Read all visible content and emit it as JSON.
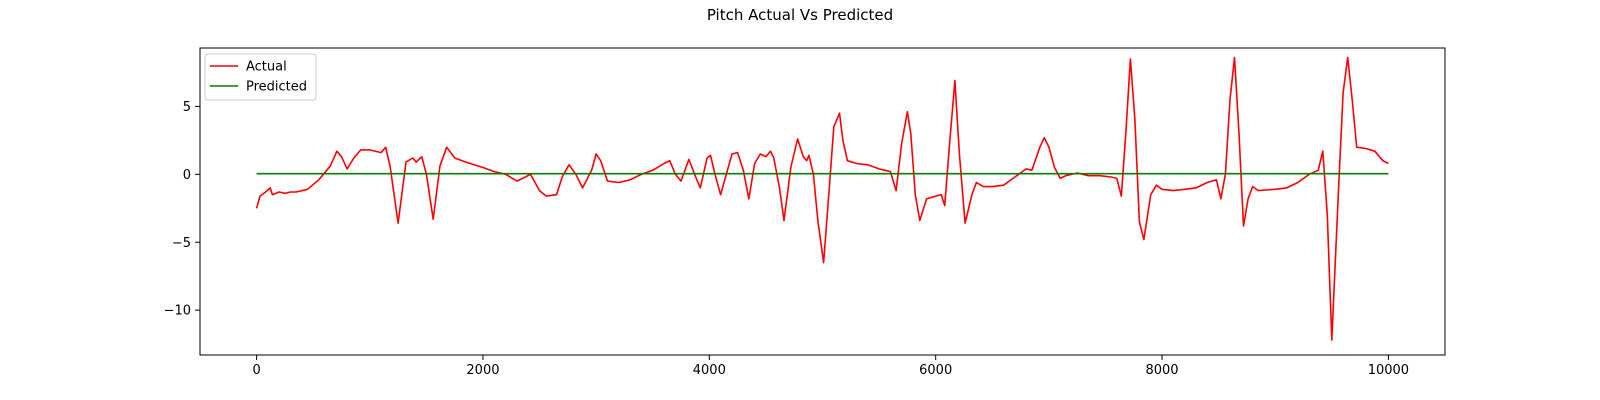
{
  "chart_data": {
    "type": "line",
    "title": "Pitch Actual Vs Predicted",
    "xlabel": "",
    "ylabel": "",
    "xlim": [
      -500,
      10500
    ],
    "ylim": [
      -13.3,
      9.3
    ],
    "xticks": [
      0,
      2000,
      4000,
      6000,
      8000,
      10000
    ],
    "yticks": [
      -10,
      -5,
      0,
      5
    ],
    "grid": false,
    "legend_position": "top-left",
    "series": [
      {
        "name": "Actual",
        "color": "#ff0000",
        "points": [
          [
            0,
            -2.5
          ],
          [
            30,
            -1.6
          ],
          [
            80,
            -1.3
          ],
          [
            120,
            -1.0
          ],
          [
            140,
            -1.5
          ],
          [
            200,
            -1.3
          ],
          [
            250,
            -1.4
          ],
          [
            300,
            -1.3
          ],
          [
            350,
            -1.3
          ],
          [
            450,
            -1.1
          ],
          [
            550,
            -0.4
          ],
          [
            650,
            0.6
          ],
          [
            710,
            1.7
          ],
          [
            750,
            1.3
          ],
          [
            800,
            0.4
          ],
          [
            860,
            1.2
          ],
          [
            920,
            1.8
          ],
          [
            1000,
            1.8
          ],
          [
            1100,
            1.6
          ],
          [
            1140,
            2.0
          ],
          [
            1180,
            0.6
          ],
          [
            1250,
            -3.6
          ],
          [
            1320,
            0.9
          ],
          [
            1380,
            1.2
          ],
          [
            1410,
            0.9
          ],
          [
            1460,
            1.3
          ],
          [
            1500,
            0.0
          ],
          [
            1560,
            -3.3
          ],
          [
            1620,
            0.6
          ],
          [
            1680,
            2.0
          ],
          [
            1750,
            1.2
          ],
          [
            1850,
            0.9
          ],
          [
            2000,
            0.5
          ],
          [
            2100,
            0.2
          ],
          [
            2200,
            0.0
          ],
          [
            2300,
            -0.5
          ],
          [
            2420,
            0.0
          ],
          [
            2500,
            -1.2
          ],
          [
            2560,
            -1.6
          ],
          [
            2650,
            -1.5
          ],
          [
            2700,
            -0.2
          ],
          [
            2760,
            0.7
          ],
          [
            2820,
            0.0
          ],
          [
            2880,
            -1.0
          ],
          [
            2960,
            0.3
          ],
          [
            3000,
            1.5
          ],
          [
            3040,
            1.0
          ],
          [
            3100,
            -0.5
          ],
          [
            3200,
            -0.6
          ],
          [
            3300,
            -0.4
          ],
          [
            3400,
            0.0
          ],
          [
            3500,
            0.3
          ],
          [
            3600,
            0.8
          ],
          [
            3650,
            1.0
          ],
          [
            3700,
            0.0
          ],
          [
            3750,
            -0.5
          ],
          [
            3820,
            1.1
          ],
          [
            3870,
            0.0
          ],
          [
            3920,
            -1.0
          ],
          [
            3980,
            1.2
          ],
          [
            4010,
            1.4
          ],
          [
            4050,
            0.0
          ],
          [
            4100,
            -1.5
          ],
          [
            4150,
            0.0
          ],
          [
            4200,
            1.5
          ],
          [
            4250,
            1.6
          ],
          [
            4300,
            0.3
          ],
          [
            4350,
            -1.8
          ],
          [
            4400,
            0.8
          ],
          [
            4450,
            1.5
          ],
          [
            4500,
            1.3
          ],
          [
            4540,
            1.7
          ],
          [
            4570,
            1.2
          ],
          [
            4620,
            -1.0
          ],
          [
            4660,
            -3.4
          ],
          [
            4720,
            0.5
          ],
          [
            4780,
            2.6
          ],
          [
            4830,
            1.3
          ],
          [
            4860,
            1.0
          ],
          [
            4880,
            1.4
          ],
          [
            4920,
            0.0
          ],
          [
            4960,
            -3.5
          ],
          [
            5010,
            -6.5
          ],
          [
            5060,
            -1.0
          ],
          [
            5100,
            3.5
          ],
          [
            5150,
            4.5
          ],
          [
            5180,
            2.5
          ],
          [
            5220,
            1.0
          ],
          [
            5300,
            0.8
          ],
          [
            5400,
            0.7
          ],
          [
            5500,
            0.4
          ],
          [
            5600,
            0.2
          ],
          [
            5650,
            -1.2
          ],
          [
            5700,
            2.3
          ],
          [
            5750,
            4.6
          ],
          [
            5780,
            3.0
          ],
          [
            5820,
            -1.5
          ],
          [
            5860,
            -3.4
          ],
          [
            5920,
            -1.8
          ],
          [
            6000,
            -1.6
          ],
          [
            6050,
            -1.5
          ],
          [
            6080,
            -2.3
          ],
          [
            6120,
            2.0
          ],
          [
            6170,
            6.9
          ],
          [
            6210,
            1.5
          ],
          [
            6260,
            -3.6
          ],
          [
            6320,
            -1.5
          ],
          [
            6360,
            -0.6
          ],
          [
            6420,
            -0.9
          ],
          [
            6500,
            -0.9
          ],
          [
            6600,
            -0.8
          ],
          [
            6700,
            -0.2
          ],
          [
            6800,
            0.4
          ],
          [
            6850,
            0.3
          ],
          [
            6920,
            2.0
          ],
          [
            6960,
            2.7
          ],
          [
            7000,
            2.0
          ],
          [
            7050,
            0.5
          ],
          [
            7100,
            -0.3
          ],
          [
            7150,
            -0.1
          ],
          [
            7250,
            0.1
          ],
          [
            7350,
            -0.1
          ],
          [
            7450,
            -0.1
          ],
          [
            7550,
            -0.2
          ],
          [
            7600,
            -0.3
          ],
          [
            7640,
            -1.6
          ],
          [
            7680,
            3.0
          ],
          [
            7720,
            8.5
          ],
          [
            7760,
            4.0
          ],
          [
            7800,
            -3.5
          ],
          [
            7840,
            -4.8
          ],
          [
            7900,
            -1.5
          ],
          [
            7950,
            -0.8
          ],
          [
            8000,
            -1.1
          ],
          [
            8100,
            -1.2
          ],
          [
            8200,
            -1.1
          ],
          [
            8300,
            -1.0
          ],
          [
            8400,
            -0.6
          ],
          [
            8480,
            -0.4
          ],
          [
            8520,
            -1.8
          ],
          [
            8560,
            0.0
          ],
          [
            8600,
            5.5
          ],
          [
            8640,
            8.6
          ],
          [
            8680,
            3.0
          ],
          [
            8720,
            -3.8
          ],
          [
            8760,
            -1.8
          ],
          [
            8800,
            -0.9
          ],
          [
            8850,
            -1.2
          ],
          [
            9000,
            -1.1
          ],
          [
            9100,
            -1.0
          ],
          [
            9200,
            -0.6
          ],
          [
            9300,
            0.0
          ],
          [
            9380,
            0.3
          ],
          [
            9420,
            1.7
          ],
          [
            9460,
            -3.0
          ],
          [
            9500,
            -12.2
          ],
          [
            9560,
            -1.0
          ],
          [
            9600,
            6.0
          ],
          [
            9640,
            8.6
          ],
          [
            9680,
            5.5
          ],
          [
            9720,
            2.0
          ],
          [
            9800,
            1.9
          ],
          [
            9880,
            1.7
          ],
          [
            9950,
            1.0
          ],
          [
            10000,
            0.8
          ]
        ]
      },
      {
        "name": "Predicted",
        "color": "#008000",
        "points": [
          [
            0,
            0.05
          ],
          [
            10000,
            0.05
          ]
        ]
      }
    ]
  }
}
